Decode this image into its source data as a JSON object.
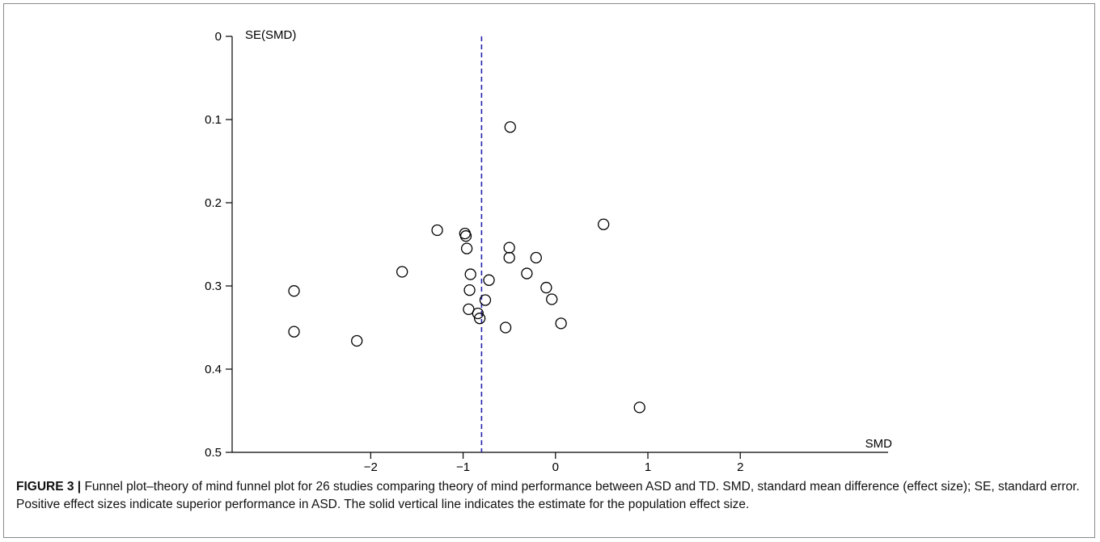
{
  "chart_data": {
    "type": "scatter",
    "title": "",
    "xlabel": "SMD",
    "ylabel": "SE(SMD)",
    "xlim": [
      -3.5,
      3.6
    ],
    "ylim": [
      0,
      0.5
    ],
    "y_inverted": true,
    "x_ticks": [
      -2,
      -1,
      0,
      1,
      2
    ],
    "x_tick_labels": [
      "−2",
      "−1",
      "0",
      "1",
      "2"
    ],
    "y_ticks": [
      0,
      0.1,
      0.2,
      0.3,
      0.4,
      0.5
    ],
    "y_tick_labels": [
      "0",
      "0.1",
      "0.2",
      "0.3",
      "0.4",
      "0.5"
    ],
    "reference_line": {
      "x": -0.8,
      "style": "dashed",
      "color": "#2222aa"
    },
    "marker": "open-circle",
    "points": [
      {
        "x": -0.49,
        "y": 0.109
      },
      {
        "x": 0.52,
        "y": 0.226
      },
      {
        "x": -1.28,
        "y": 0.233
      },
      {
        "x": -0.98,
        "y": 0.237
      },
      {
        "x": -0.97,
        "y": 0.24
      },
      {
        "x": -0.96,
        "y": 0.255
      },
      {
        "x": -0.5,
        "y": 0.254
      },
      {
        "x": -0.5,
        "y": 0.266
      },
      {
        "x": -0.21,
        "y": 0.266
      },
      {
        "x": -1.66,
        "y": 0.283
      },
      {
        "x": -0.92,
        "y": 0.286
      },
      {
        "x": -0.31,
        "y": 0.285
      },
      {
        "x": -0.72,
        "y": 0.293
      },
      {
        "x": -0.1,
        "y": 0.302
      },
      {
        "x": -0.93,
        "y": 0.305
      },
      {
        "x": -2.83,
        "y": 0.306
      },
      {
        "x": -0.04,
        "y": 0.316
      },
      {
        "x": -0.76,
        "y": 0.317
      },
      {
        "x": -0.94,
        "y": 0.328
      },
      {
        "x": -0.84,
        "y": 0.333
      },
      {
        "x": -0.82,
        "y": 0.339
      },
      {
        "x": 0.06,
        "y": 0.345
      },
      {
        "x": -0.54,
        "y": 0.35
      },
      {
        "x": -2.83,
        "y": 0.355
      },
      {
        "x": -2.15,
        "y": 0.366
      },
      {
        "x": 0.91,
        "y": 0.446
      }
    ]
  },
  "caption": {
    "label": "FIGURE 3 |",
    "text": " Funnel plot–theory of mind funnel plot for 26 studies comparing theory of mind performance between ASD and TD. SMD, standard mean difference (effect size); SE, standard error. Positive effect sizes indicate superior performance in ASD. The solid vertical line indicates the estimate for the population effect size."
  }
}
